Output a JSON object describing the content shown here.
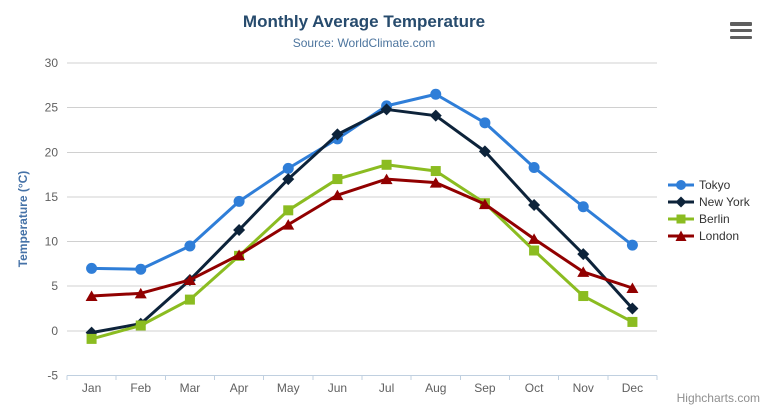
{
  "chart_data": {
    "type": "line",
    "title": "Monthly Average Temperature",
    "subtitle": "Source: WorldClimate.com",
    "categories": [
      "Jan",
      "Feb",
      "Mar",
      "Apr",
      "May",
      "Jun",
      "Jul",
      "Aug",
      "Sep",
      "Oct",
      "Nov",
      "Dec"
    ],
    "xlabel": "",
    "ylabel": "Temperature (°C)",
    "ylim": [
      -5,
      30
    ],
    "y_tick_interval": 5,
    "grid": true,
    "legend_position": "right",
    "series": [
      {
        "name": "Tokyo",
        "color": "#2f7ed8",
        "marker": "circle",
        "values": [
          7.0,
          6.9,
          9.5,
          14.5,
          18.2,
          21.5,
          25.2,
          26.5,
          23.3,
          18.3,
          13.9,
          9.6
        ]
      },
      {
        "name": "New York",
        "color": "#0d233a",
        "marker": "diamond",
        "values": [
          -0.2,
          0.8,
          5.7,
          11.3,
          17.0,
          22.0,
          24.8,
          24.1,
          20.1,
          14.1,
          8.6,
          2.5
        ]
      },
      {
        "name": "Berlin",
        "color": "#8bbc21",
        "marker": "square",
        "values": [
          -0.9,
          0.6,
          3.5,
          8.4,
          13.5,
          17.0,
          18.6,
          17.9,
          14.3,
          9.0,
          3.9,
          1.0
        ]
      },
      {
        "name": "London",
        "color": "#910000",
        "marker": "triangle-up",
        "values": [
          3.9,
          4.2,
          5.7,
          8.5,
          11.9,
          15.2,
          17.0,
          16.6,
          14.2,
          10.3,
          6.6,
          4.8
        ]
      }
    ]
  },
  "export_menu": {
    "icon": "hamburger-menu-icon"
  },
  "credit": {
    "label": "Highcharts.com"
  },
  "colors": {
    "grid_line": "#d0d0d0",
    "axis_line": "#c0d0e0",
    "tick_label": "#606060",
    "title": "#274b6d",
    "subtitle": "#4d759e",
    "y_axis_title": "#4572a7",
    "legend_text": "#333333",
    "credit_text": "#8f8f8f",
    "export_icon": "#5f5f5f"
  }
}
